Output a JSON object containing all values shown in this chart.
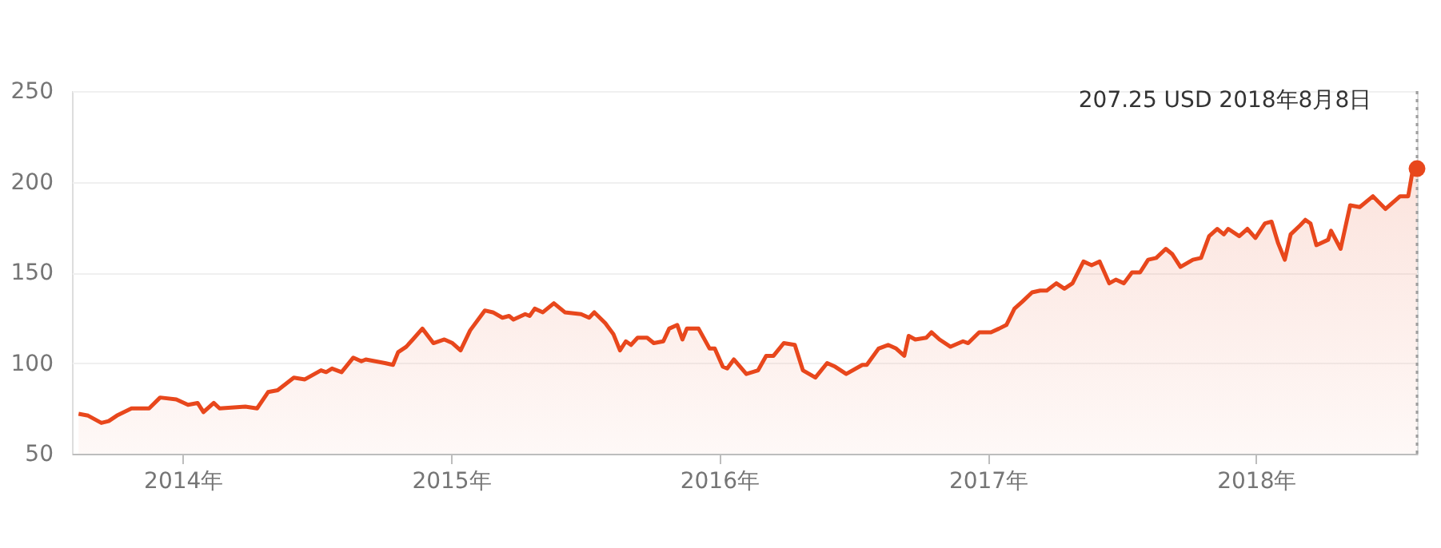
{
  "chart_data": {
    "type": "area",
    "xlim": [
      "2013-08-03",
      "2018-08-08"
    ],
    "ylim": [
      50,
      250
    ],
    "yticks": [
      50,
      100,
      150,
      200,
      250
    ],
    "xticks": [
      {
        "value": "2014-01-01",
        "label": "2014年"
      },
      {
        "value": "2015-01-01",
        "label": "2015年"
      },
      {
        "value": "2016-01-01",
        "label": "2016年"
      },
      {
        "value": "2017-01-01",
        "label": "2017年"
      },
      {
        "value": "2018-01-01",
        "label": "2018年"
      }
    ],
    "grid": "y",
    "marker": "none",
    "line_style": "solid",
    "series": [
      {
        "color": "#e8471c",
        "x": [
          "2013-08-12",
          "2013-08-25",
          "2013-09-12",
          "2013-09-22",
          "2013-10-03",
          "2013-10-23",
          "2013-11-16",
          "2013-12-01",
          "2013-12-23",
          "2014-01-08",
          "2014-01-21",
          "2014-01-29",
          "2014-02-12",
          "2014-02-20",
          "2014-03-27",
          "2014-04-12",
          "2014-04-27",
          "2014-05-10",
          "2014-06-01",
          "2014-06-16",
          "2014-07-08",
          "2014-07-15",
          "2014-07-23",
          "2014-08-05",
          "2014-08-21",
          "2014-09-01",
          "2014-09-07",
          "2014-10-03",
          "2014-10-14",
          "2014-10-21",
          "2014-11-01",
          "2014-11-10",
          "2014-11-23",
          "2014-12-08",
          "2014-12-23",
          "2015-01-03",
          "2015-01-14",
          "2015-01-27",
          "2015-02-16",
          "2015-02-27",
          "2015-03-12",
          "2015-03-21",
          "2015-03-27",
          "2015-04-12",
          "2015-04-18",
          "2015-04-25",
          "2015-05-06",
          "2015-05-21",
          "2015-06-05",
          "2015-06-27",
          "2015-07-08",
          "2015-07-15",
          "2015-07-30",
          "2015-08-10",
          "2015-08-19",
          "2015-08-27",
          "2015-09-03",
          "2015-09-12",
          "2015-09-25",
          "2015-10-04",
          "2015-10-17",
          "2015-10-25",
          "2015-11-05",
          "2015-11-12",
          "2015-11-18",
          "2015-12-04",
          "2015-12-19",
          "2015-12-26",
          "2016-01-06",
          "2016-01-12",
          "2016-01-21",
          "2016-02-07",
          "2016-02-23",
          "2016-03-05",
          "2016-03-15",
          "2016-03-29",
          "2016-04-13",
          "2016-04-24",
          "2016-05-11",
          "2016-05-27",
          "2016-06-07",
          "2016-06-22",
          "2016-07-14",
          "2016-07-20",
          "2016-08-05",
          "2016-08-18",
          "2016-08-29",
          "2016-09-09",
          "2016-09-15",
          "2016-09-24",
          "2016-10-09",
          "2016-10-16",
          "2016-10-27",
          "2016-11-11",
          "2016-11-28",
          "2016-12-05",
          "2016-12-20",
          "2017-01-05",
          "2017-01-16",
          "2017-01-26",
          "2017-02-06",
          "2017-02-17",
          "2017-03-02",
          "2017-03-13",
          "2017-03-22",
          "2017-04-04",
          "2017-04-15",
          "2017-04-26",
          "2017-05-11",
          "2017-05-22",
          "2017-06-02",
          "2017-06-15",
          "2017-06-24",
          "2017-07-05",
          "2017-07-16",
          "2017-07-27",
          "2017-08-07",
          "2017-08-18",
          "2017-08-31",
          "2017-09-09",
          "2017-09-20",
          "2017-10-07",
          "2017-10-18",
          "2017-10-29",
          "2017-11-09",
          "2017-11-18",
          "2017-11-24",
          "2017-12-09",
          "2017-12-20",
          "2017-12-31",
          "2018-01-13",
          "2018-01-22",
          "2018-01-31",
          "2018-02-09",
          "2018-02-17",
          "2018-03-02",
          "2018-03-09",
          "2018-03-16",
          "2018-03-24",
          "2018-04-09",
          "2018-04-13",
          "2018-04-26",
          "2018-05-09",
          "2018-05-22",
          "2018-06-09",
          "2018-06-26",
          "2018-07-16",
          "2018-07-27",
          "2018-08-02",
          "2018-08-08"
        ],
        "values": [
          72,
          71,
          67,
          68,
          71,
          75,
          75,
          81,
          80,
          77,
          78,
          73,
          78,
          75,
          76,
          75,
          84,
          85,
          92,
          91,
          96,
          95,
          97,
          95,
          103,
          101,
          102,
          100,
          99,
          106,
          109,
          113,
          119,
          111,
          113,
          111,
          107,
          118,
          129,
          128,
          125,
          126,
          124,
          127,
          126,
          130,
          128,
          133,
          128,
          127,
          125,
          128,
          122,
          116,
          107,
          112,
          110,
          114,
          114,
          111,
          112,
          119,
          121,
          113,
          119,
          119,
          108,
          108,
          98,
          97,
          102,
          94,
          96,
          104,
          104,
          111,
          110,
          96,
          92,
          100,
          98,
          94,
          99,
          99,
          108,
          110,
          108,
          104,
          115,
          113,
          114,
          117,
          113,
          109,
          112,
          111,
          117,
          117,
          119,
          121,
          130,
          134,
          139,
          140,
          140,
          144,
          141,
          144,
          156,
          154,
          156,
          144,
          146,
          144,
          150,
          150,
          157,
          158,
          163,
          160,
          153,
          157,
          158,
          170,
          174,
          171,
          174,
          170,
          174,
          169,
          177,
          178,
          166,
          157,
          171,
          176,
          179,
          177,
          165,
          168,
          173,
          163,
          187,
          186,
          192,
          185,
          192,
          192,
          206,
          207.25
        ]
      }
    ],
    "annotations": [
      "207.25 USD  2018年8月8日"
    ],
    "ref_lines": [
      {
        "axis": "x",
        "value": "2018-08-08",
        "line_style": "dotted",
        "color": "#9e9e9e"
      }
    ]
  }
}
